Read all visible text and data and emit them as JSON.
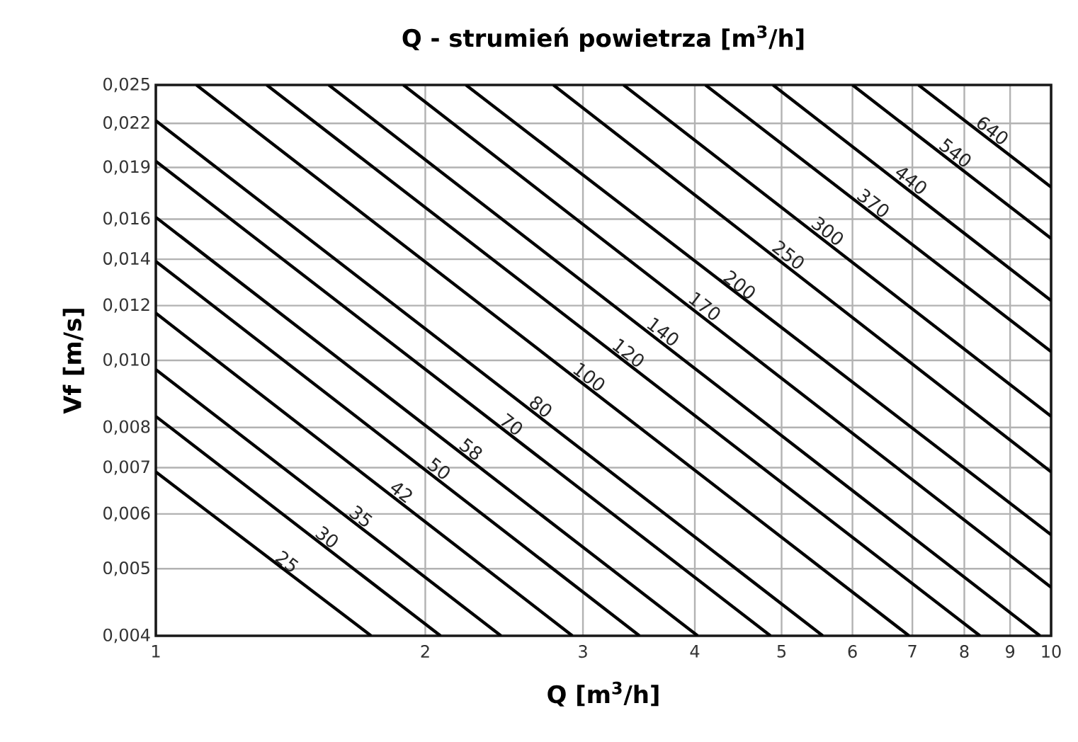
{
  "chart_data": {
    "type": "line",
    "title": "Q - strumień powietrza [m$^{3}$/h]",
    "xlabel": "Q [m$^{3}$/h]",
    "ylabel": "Vf [m/s]",
    "log": "xy",
    "grid": true,
    "marker": "none",
    "line_style": "solid",
    "xlim": [
      1,
      10
    ],
    "ylim": [
      0.004,
      0.025
    ],
    "xticks": [
      1,
      2,
      3,
      4,
      5,
      6,
      7,
      8,
      9,
      10
    ],
    "yticks": [
      {
        "value": 0.004,
        "label": "0,004"
      },
      {
        "value": 0.005,
        "label": "0,005"
      },
      {
        "value": 0.006,
        "label": "0,006"
      },
      {
        "value": 0.007,
        "label": "0,007"
      },
      {
        "value": 0.008,
        "label": "0,008"
      },
      {
        "value": 0.01,
        "label": "0,010"
      },
      {
        "value": 0.012,
        "label": "0,012"
      },
      {
        "value": 0.014,
        "label": "0,014"
      },
      {
        "value": 0.016,
        "label": "0,016"
      },
      {
        "value": 0.019,
        "label": "0,019"
      },
      {
        "value": 0.022,
        "label": "0,022"
      },
      {
        "value": 0.025,
        "label": "0,025"
      }
    ],
    "series": [
      {
        "name": "25",
        "color": "#000000",
        "x": [
          1,
          1.74
        ],
        "values": [
          0.0069,
          0.004
        ]
      },
      {
        "name": "30",
        "color": "#000000",
        "x": [
          1,
          2.08
        ],
        "values": [
          0.0083,
          0.004
        ]
      },
      {
        "name": "35",
        "color": "#000000",
        "x": [
          1,
          2.43
        ],
        "values": [
          0.0097,
          0.004
        ]
      },
      {
        "name": "42",
        "color": "#000000",
        "x": [
          1,
          2.92
        ],
        "values": [
          0.0117,
          0.004
        ]
      },
      {
        "name": "50",
        "color": "#000000",
        "x": [
          1,
          3.47
        ],
        "values": [
          0.0139,
          0.004
        ]
      },
      {
        "name": "58",
        "color": "#000000",
        "x": [
          1,
          4.03
        ],
        "values": [
          0.0161,
          0.004
        ]
      },
      {
        "name": "70",
        "color": "#000000",
        "x": [
          1,
          4.86
        ],
        "values": [
          0.0194,
          0.004
        ]
      },
      {
        "name": "80",
        "color": "#000000",
        "x": [
          1,
          5.56
        ],
        "values": [
          0.0222,
          0.004
        ]
      },
      {
        "name": "100",
        "color": "#000000",
        "x": [
          1.11,
          6.94
        ],
        "values": [
          0.025,
          0.004
        ]
      },
      {
        "name": "120",
        "color": "#000000",
        "x": [
          1.33,
          8.33
        ],
        "values": [
          0.025,
          0.004
        ]
      },
      {
        "name": "140",
        "color": "#000000",
        "x": [
          1.56,
          9.72
        ],
        "values": [
          0.025,
          0.004
        ]
      },
      {
        "name": "170",
        "color": "#000000",
        "x": [
          1.89,
          10
        ],
        "values": [
          0.025,
          0.0047
        ]
      },
      {
        "name": "200",
        "color": "#000000",
        "x": [
          2.22,
          10
        ],
        "values": [
          0.025,
          0.0056
        ]
      },
      {
        "name": "250",
        "color": "#000000",
        "x": [
          2.78,
          10
        ],
        "values": [
          0.025,
          0.0069
        ]
      },
      {
        "name": "300",
        "color": "#000000",
        "x": [
          3.33,
          10
        ],
        "values": [
          0.025,
          0.0083
        ]
      },
      {
        "name": "370",
        "color": "#000000",
        "x": [
          4.11,
          10
        ],
        "values": [
          0.025,
          0.0103
        ]
      },
      {
        "name": "440",
        "color": "#000000",
        "x": [
          4.89,
          10
        ],
        "values": [
          0.025,
          0.0122
        ]
      },
      {
        "name": "540",
        "color": "#000000",
        "x": [
          6.0,
          10
        ],
        "values": [
          0.025,
          0.015
        ]
      },
      {
        "name": "640",
        "color": "#000000",
        "x": [
          7.11,
          10
        ],
        "values": [
          0.025,
          0.0178
        ]
      }
    ]
  }
}
